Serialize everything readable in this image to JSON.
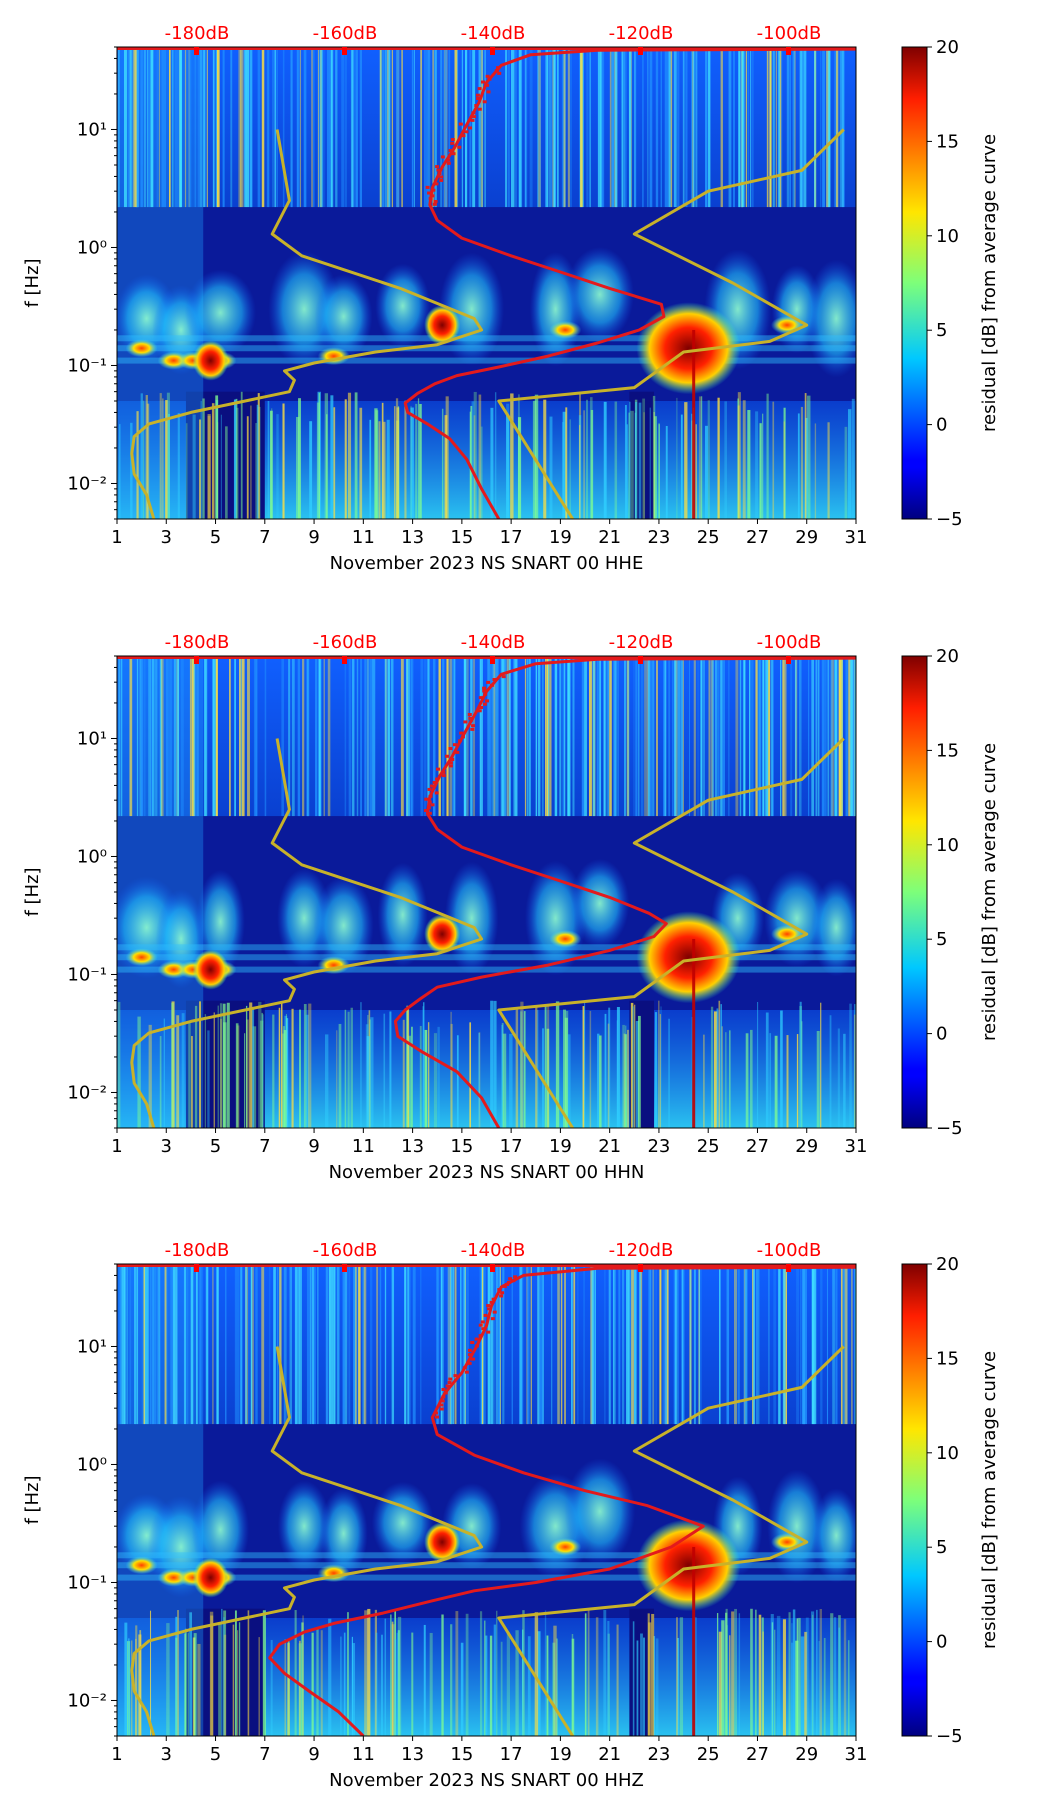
{
  "chart_data": [
    {
      "type": "heatmap",
      "channel": "HHE",
      "xlabel": "November 2023 NS SNART 00 HHE",
      "ylabel": "f [Hz]",
      "x_ticks": [
        "1",
        "3",
        "5",
        "7",
        "9",
        "11",
        "13",
        "15",
        "17",
        "19",
        "21",
        "23",
        "25",
        "27",
        "29",
        "31"
      ],
      "xlim": [
        1,
        31
      ],
      "y_scale": "log",
      "ylim": [
        0.005,
        50
      ],
      "y_ticks": [
        {
          "value": 0.01,
          "label": "10⁻²"
        },
        {
          "value": 0.1,
          "label": "10⁻¹"
        },
        {
          "value": 1,
          "label": "10⁰"
        },
        {
          "value": 10,
          "label": "10¹"
        }
      ],
      "top_ticks": [
        "-180dB",
        "-160dB",
        "-140dB",
        "-120dB",
        "-100dB"
      ],
      "top_tick_color": "#ff0000",
      "colorbar": {
        "label": "residual [dB] from average curve",
        "min": -5,
        "max": 20,
        "ticks": [
          "20",
          "15",
          "10",
          "5",
          "0",
          "−5"
        ],
        "colormap": "jet"
      },
      "power_curve": {
        "color": "#e31a1c",
        "points": [
          [
            16.5,
            0.005
          ],
          [
            15.8,
            0.009
          ],
          [
            15.2,
            0.016
          ],
          [
            14.5,
            0.024
          ],
          [
            13.6,
            0.032
          ],
          [
            12.8,
            0.04
          ],
          [
            12.7,
            0.048
          ],
          [
            13.2,
            0.058
          ],
          [
            13.9,
            0.07
          ],
          [
            14.8,
            0.082
          ],
          [
            16.5,
            0.097
          ],
          [
            18.5,
            0.12
          ],
          [
            20.5,
            0.155
          ],
          [
            22.2,
            0.2
          ],
          [
            23.2,
            0.26
          ],
          [
            23.1,
            0.33
          ],
          [
            21.0,
            0.45
          ],
          [
            19.0,
            0.62
          ],
          [
            17.0,
            0.85
          ],
          [
            15.0,
            1.2
          ],
          [
            14.0,
            1.7
          ],
          [
            13.7,
            2.3
          ],
          [
            13.8,
            3.2
          ],
          [
            14.2,
            4.8
          ],
          [
            14.7,
            7
          ],
          [
            15.2,
            11
          ],
          [
            15.7,
            17
          ],
          [
            16.0,
            25
          ],
          [
            16.6,
            35
          ],
          [
            17.8,
            43
          ],
          [
            20.5,
            47
          ],
          [
            31,
            48
          ]
        ]
      },
      "model_curve": {
        "color": "#c8b22a",
        "points": [
          [
            2.5,
            0.005
          ],
          [
            2.2,
            0.008
          ],
          [
            1.7,
            0.012
          ],
          [
            1.6,
            0.018
          ],
          [
            1.7,
            0.025
          ],
          [
            2.3,
            0.032
          ],
          [
            4.0,
            0.04
          ],
          [
            8.0,
            0.06
          ],
          [
            8.2,
            0.075
          ],
          [
            7.8,
            0.09
          ],
          [
            9.0,
            0.105
          ],
          [
            11.5,
            0.13
          ],
          [
            14.0,
            0.15
          ],
          [
            15.8,
            0.2
          ],
          [
            15.5,
            0.25
          ],
          [
            12.5,
            0.45
          ],
          [
            8.5,
            0.85
          ],
          [
            7.3,
            1.3
          ],
          [
            8.0,
            2.5
          ],
          [
            7.5,
            10
          ],
          [
            null,
            null
          ],
          [
            19.5,
            0.005
          ],
          [
            16.5,
            0.05
          ],
          [
            22.0,
            0.065
          ],
          [
            24.0,
            0.13
          ],
          [
            27.5,
            0.16
          ],
          [
            29.0,
            0.22
          ],
          [
            26.0,
            0.5
          ],
          [
            22.0,
            1.3
          ],
          [
            25.0,
            3
          ],
          [
            28.8,
            4.5
          ],
          [
            30.5,
            10
          ]
        ]
      },
      "hot_spots": [
        {
          "x": 24.2,
          "y": 0.14,
          "label": ""
        },
        {
          "x": 14.2,
          "y": 0.22,
          "label": ""
        },
        {
          "x": 4.8,
          "y": 0.11,
          "label": ""
        }
      ]
    },
    {
      "type": "heatmap",
      "channel": "HHN",
      "xlabel": "November 2023 NS SNART 00 HHN",
      "ylabel": "f [Hz]",
      "x_ticks": [
        "1",
        "3",
        "5",
        "7",
        "9",
        "11",
        "13",
        "15",
        "17",
        "19",
        "21",
        "23",
        "25",
        "27",
        "29",
        "31"
      ],
      "xlim": [
        1,
        31
      ],
      "y_scale": "log",
      "ylim": [
        0.005,
        50
      ],
      "y_ticks": [
        {
          "value": 0.01,
          "label": "10⁻²"
        },
        {
          "value": 0.1,
          "label": "10⁻¹"
        },
        {
          "value": 1,
          "label": "10⁰"
        },
        {
          "value": 10,
          "label": "10¹"
        }
      ],
      "top_ticks": [
        "-180dB",
        "-160dB",
        "-140dB",
        "-120dB",
        "-100dB"
      ],
      "top_tick_color": "#ff0000",
      "colorbar": {
        "label": "residual [dB] from average curve",
        "min": -5,
        "max": 20,
        "ticks": [
          "20",
          "15",
          "10",
          "5",
          "0",
          "−5"
        ],
        "colormap": "jet"
      },
      "power_curve": {
        "color": "#e31a1c",
        "points": [
          [
            16.5,
            0.005
          ],
          [
            15.8,
            0.009
          ],
          [
            14.8,
            0.015
          ],
          [
            13.4,
            0.022
          ],
          [
            12.4,
            0.03
          ],
          [
            12.3,
            0.04
          ],
          [
            12.7,
            0.05
          ],
          [
            13.3,
            0.062
          ],
          [
            14.0,
            0.078
          ],
          [
            15.8,
            0.095
          ],
          [
            18.5,
            0.12
          ],
          [
            21.0,
            0.16
          ],
          [
            22.8,
            0.21
          ],
          [
            23.3,
            0.27
          ],
          [
            22.6,
            0.33
          ],
          [
            21.0,
            0.45
          ],
          [
            19.0,
            0.62
          ],
          [
            17.0,
            0.85
          ],
          [
            15.0,
            1.2
          ],
          [
            14.0,
            1.7
          ],
          [
            13.6,
            2.3
          ],
          [
            13.7,
            3.2
          ],
          [
            14.1,
            4.8
          ],
          [
            14.6,
            7
          ],
          [
            15.1,
            11
          ],
          [
            15.6,
            17
          ],
          [
            16.0,
            25
          ],
          [
            16.6,
            35
          ],
          [
            18.0,
            43
          ],
          [
            20.5,
            47
          ],
          [
            31,
            48
          ]
        ]
      },
      "model_curve": {
        "color": "#c8b22a",
        "points": [
          [
            2.5,
            0.005
          ],
          [
            2.2,
            0.008
          ],
          [
            1.7,
            0.012
          ],
          [
            1.6,
            0.018
          ],
          [
            1.7,
            0.025
          ],
          [
            2.3,
            0.032
          ],
          [
            4.0,
            0.04
          ],
          [
            8.0,
            0.06
          ],
          [
            8.2,
            0.075
          ],
          [
            7.8,
            0.09
          ],
          [
            9.0,
            0.105
          ],
          [
            11.5,
            0.13
          ],
          [
            14.0,
            0.15
          ],
          [
            15.8,
            0.2
          ],
          [
            15.5,
            0.25
          ],
          [
            12.5,
            0.45
          ],
          [
            8.5,
            0.85
          ],
          [
            7.3,
            1.3
          ],
          [
            8.0,
            2.5
          ],
          [
            7.5,
            10
          ],
          [
            null,
            null
          ],
          [
            19.5,
            0.005
          ],
          [
            16.5,
            0.05
          ],
          [
            22.0,
            0.065
          ],
          [
            24.0,
            0.13
          ],
          [
            27.5,
            0.16
          ],
          [
            29.0,
            0.22
          ],
          [
            26.0,
            0.5
          ],
          [
            22.0,
            1.3
          ],
          [
            25.0,
            3
          ],
          [
            28.8,
            4.5
          ],
          [
            30.5,
            10
          ]
        ]
      },
      "hot_spots": [
        {
          "x": 24.2,
          "y": 0.14,
          "label": ""
        },
        {
          "x": 14.2,
          "y": 0.22,
          "label": ""
        },
        {
          "x": 4.8,
          "y": 0.11,
          "label": ""
        }
      ]
    },
    {
      "type": "heatmap",
      "channel": "HHZ",
      "xlabel": "November 2023 NS SNART 00 HHZ",
      "ylabel": "f [Hz]",
      "x_ticks": [
        "1",
        "3",
        "5",
        "7",
        "9",
        "11",
        "13",
        "15",
        "17",
        "19",
        "21",
        "23",
        "25",
        "27",
        "29",
        "31"
      ],
      "xlim": [
        1,
        31
      ],
      "y_scale": "log",
      "ylim": [
        0.005,
        50
      ],
      "y_ticks": [
        {
          "value": 0.01,
          "label": "10⁻²"
        },
        {
          "value": 0.1,
          "label": "10⁻¹"
        },
        {
          "value": 1,
          "label": "10⁰"
        },
        {
          "value": 10,
          "label": "10¹"
        }
      ],
      "top_ticks": [
        "-180dB",
        "-160dB",
        "-140dB",
        "-120dB",
        "-100dB"
      ],
      "top_tick_color": "#ff0000",
      "colorbar": {
        "label": "residual [dB] from average curve",
        "min": -5,
        "max": 20,
        "ticks": [
          "20",
          "15",
          "10",
          "5",
          "0",
          "−5"
        ],
        "colormap": "jet"
      },
      "power_curve": {
        "color": "#e31a1c",
        "points": [
          [
            11.0,
            0.005
          ],
          [
            10.0,
            0.008
          ],
          [
            8.8,
            0.012
          ],
          [
            7.8,
            0.017
          ],
          [
            7.2,
            0.023
          ],
          [
            7.6,
            0.03
          ],
          [
            8.6,
            0.038
          ],
          [
            9.8,
            0.045
          ],
          [
            11.8,
            0.055
          ],
          [
            13.8,
            0.07
          ],
          [
            15.5,
            0.085
          ],
          [
            18.0,
            0.1
          ],
          [
            21.0,
            0.13
          ],
          [
            23.5,
            0.2
          ],
          [
            24.8,
            0.3
          ],
          [
            22.5,
            0.45
          ],
          [
            20.0,
            0.6
          ],
          [
            17.5,
            0.85
          ],
          [
            15.5,
            1.2
          ],
          [
            14.0,
            1.8
          ],
          [
            13.8,
            2.5
          ],
          [
            14.3,
            4
          ],
          [
            15.0,
            6
          ],
          [
            15.6,
            10
          ],
          [
            16.0,
            15
          ],
          [
            16.2,
            22
          ],
          [
            16.6,
            32
          ],
          [
            17.5,
            40
          ],
          [
            20.5,
            46
          ],
          [
            31,
            47
          ]
        ]
      },
      "model_curve": {
        "color": "#c8b22a",
        "points": [
          [
            2.5,
            0.005
          ],
          [
            2.2,
            0.008
          ],
          [
            1.7,
            0.012
          ],
          [
            1.6,
            0.018
          ],
          [
            1.7,
            0.025
          ],
          [
            2.3,
            0.032
          ],
          [
            4.0,
            0.04
          ],
          [
            8.0,
            0.06
          ],
          [
            8.2,
            0.075
          ],
          [
            7.8,
            0.09
          ],
          [
            9.0,
            0.105
          ],
          [
            11.5,
            0.13
          ],
          [
            14.0,
            0.15
          ],
          [
            15.8,
            0.2
          ],
          [
            15.5,
            0.25
          ],
          [
            12.5,
            0.45
          ],
          [
            8.5,
            0.85
          ],
          [
            7.3,
            1.3
          ],
          [
            8.0,
            2.5
          ],
          [
            7.5,
            10
          ],
          [
            null,
            null
          ],
          [
            19.5,
            0.005
          ],
          [
            16.5,
            0.05
          ],
          [
            22.0,
            0.065
          ],
          [
            24.0,
            0.13
          ],
          [
            27.5,
            0.16
          ],
          [
            29.0,
            0.22
          ],
          [
            26.0,
            0.5
          ],
          [
            22.0,
            1.3
          ],
          [
            25.0,
            3
          ],
          [
            28.8,
            4.5
          ],
          [
            30.5,
            10
          ]
        ]
      },
      "hot_spots": [
        {
          "x": 24.2,
          "y": 0.14,
          "label": ""
        },
        {
          "x": 14.2,
          "y": 0.22,
          "label": ""
        },
        {
          "x": 4.8,
          "y": 0.11,
          "label": ""
        }
      ]
    }
  ]
}
